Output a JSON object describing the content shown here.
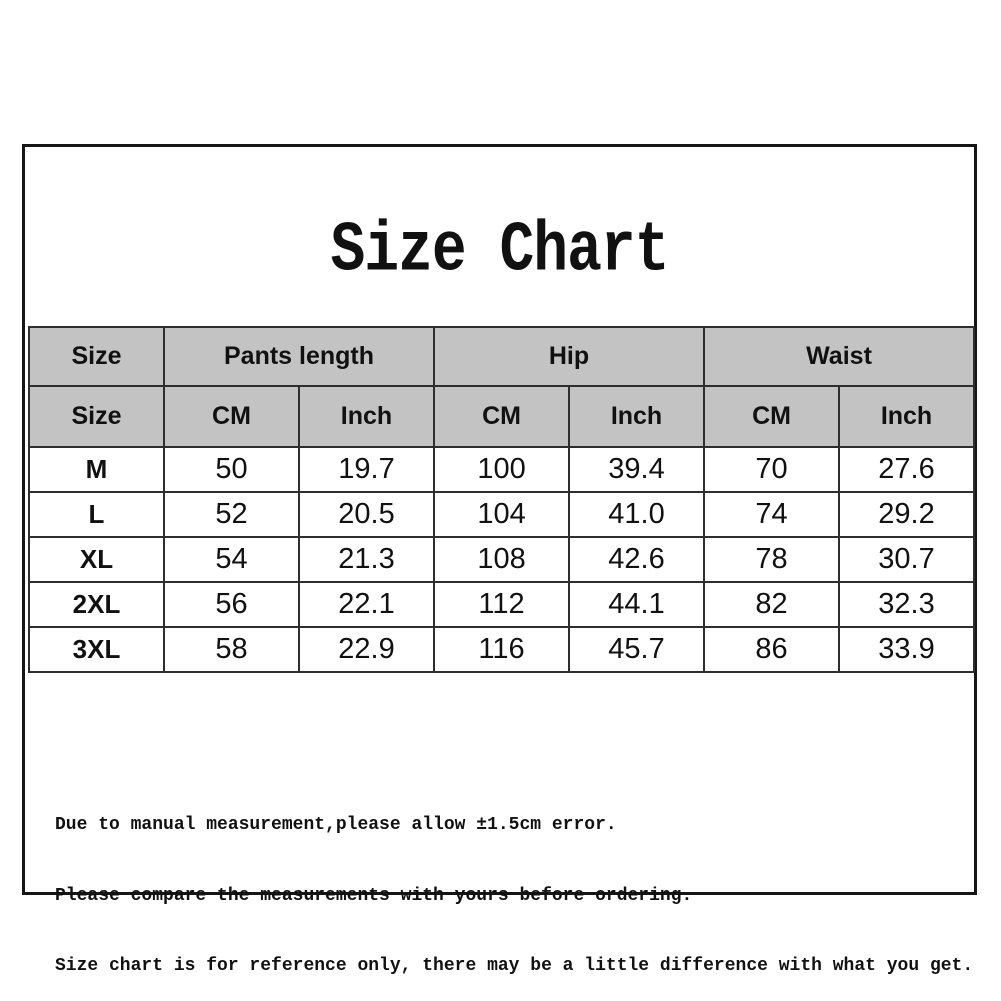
{
  "title": "Size Chart",
  "chart_data": {
    "type": "table",
    "title": "Size Chart",
    "group_headers": [
      {
        "label": "Size",
        "colspan": 1
      },
      {
        "label": "Pants length",
        "colspan": 2
      },
      {
        "label": "Hip",
        "colspan": 2
      },
      {
        "label": "Waist",
        "colspan": 2
      }
    ],
    "sub_headers": [
      "Size",
      "CM",
      "Inch",
      "CM",
      "Inch",
      "CM",
      "Inch"
    ],
    "rows": [
      {
        "size": "M",
        "values": [
          "50",
          "19.7",
          "100",
          "39.4",
          "70",
          "27.6"
        ]
      },
      {
        "size": "L",
        "values": [
          "52",
          "20.5",
          "104",
          "41.0",
          "74",
          "29.2"
        ]
      },
      {
        "size": "XL",
        "values": [
          "54",
          "21.3",
          "108",
          "42.6",
          "78",
          "30.7"
        ]
      },
      {
        "size": "2XL",
        "values": [
          "56",
          "22.1",
          "112",
          "44.1",
          "82",
          "32.3"
        ]
      },
      {
        "size": "3XL",
        "values": [
          "58",
          "22.9",
          "116",
          "45.7",
          "86",
          "33.9"
        ]
      }
    ]
  },
  "notes": [
    "Due to manual measurement,please allow ±1.5cm error.",
    "Please compare the measurements with yours before ordering.",
    "Size chart is for reference only, there may be a little difference with what you get."
  ],
  "colors": {
    "background": "#ffffff",
    "header_bg": "#c3c3c3",
    "table_border": "#2e2e2e",
    "frame_border": "#151515",
    "text": "#111111"
  }
}
